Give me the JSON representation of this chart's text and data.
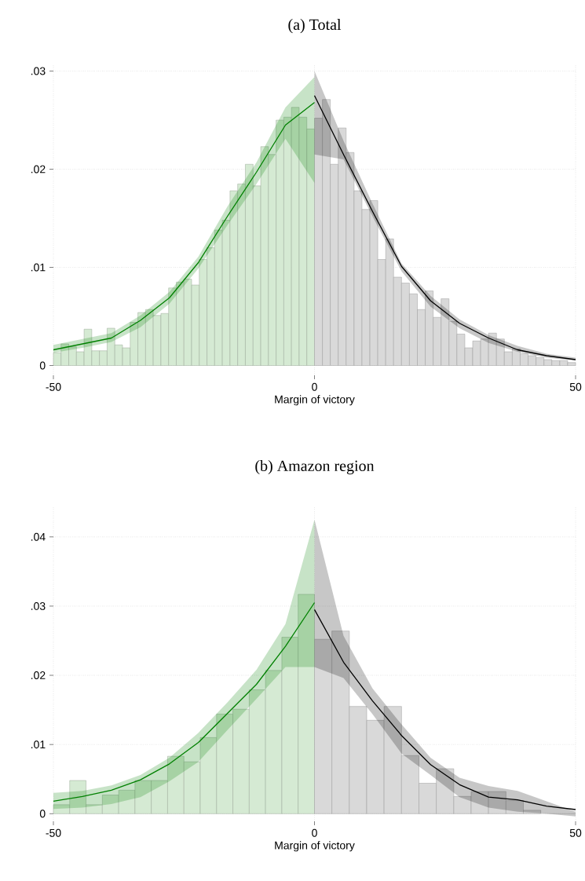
{
  "chart_data": [
    {
      "type": "histogram",
      "title": "(a) Total",
      "xlabel": "Margin of victory",
      "xlim": [
        -50,
        50
      ],
      "ylim": [
        -0.001,
        0.0306
      ],
      "xticks": [
        -50,
        0,
        50
      ],
      "yticks": [
        0,
        {
          "value": 0.01,
          "label": ".01"
        },
        {
          "value": 0.02,
          "label": ".02"
        },
        {
          "value": 0.03,
          "label": ".03"
        }
      ],
      "grid": true,
      "series": [
        {
          "type": "histogram",
          "color": "#d5ead3",
          "bins": [
            -50,
            -48.53,
            -47.06,
            -45.59,
            -44.12,
            -42.65,
            -41.18,
            -39.71,
            -38.24,
            -36.76,
            -35.29,
            -33.82,
            -32.35,
            -30.88,
            -29.41,
            -27.94,
            -26.47,
            -25,
            -23.53,
            -22.06,
            -20.59,
            -19.12,
            -17.65,
            -16.18,
            -14.71,
            -13.24,
            -11.76,
            -10.29,
            -8.82,
            -7.35,
            -5.88,
            -4.41,
            -2.94,
            -1.47,
            0
          ],
          "values": [
            0.0013,
            0.0022,
            0.0019,
            0.0014,
            0.0037,
            0.0015,
            0.0015,
            0.0038,
            0.0021,
            0.0018,
            0.0044,
            0.0054,
            0.0057,
            0.0051,
            0.0053,
            0.0079,
            0.0085,
            0.0088,
            0.0082,
            0.0108,
            0.012,
            0.0138,
            0.0148,
            0.0178,
            0.0185,
            0.0205,
            0.0183,
            0.0223,
            0.0215,
            0.025,
            0.0253,
            0.0263,
            0.0253,
            0.0241
          ]
        },
        {
          "type": "histogram",
          "color": "#d9d9d9",
          "bins": [
            0,
            1.52,
            3.03,
            4.55,
            6.06,
            7.58,
            9.09,
            10.61,
            12.12,
            13.64,
            15.15,
            16.67,
            18.18,
            19.7,
            21.21,
            22.73,
            24.24,
            25.76,
            27.27,
            28.79,
            30.3,
            31.82,
            33.33,
            34.85,
            36.36,
            37.88,
            39.39,
            40.91,
            42.42,
            43.94,
            45.45,
            46.97,
            48.48,
            50
          ],
          "values": [
            0.0252,
            0.0271,
            0.0205,
            0.0242,
            0.0217,
            0.0178,
            0.0159,
            0.0168,
            0.0108,
            0.0129,
            0.009,
            0.0084,
            0.0073,
            0.0057,
            0.0076,
            0.0049,
            0.0068,
            0.0045,
            0.0032,
            0.0018,
            0.0025,
            0.0027,
            0.0033,
            0.0027,
            0.0014,
            0.0017,
            0.0012,
            0.001,
            0.0008,
            0.0006,
            0.0005,
            0.0005,
            0.0003
          ]
        },
        {
          "type": "line",
          "color": "#008000",
          "x": [
            -50,
            -44.44,
            -38.89,
            -33.33,
            -27.78,
            -22.22,
            -16.67,
            -11.11,
            -5.56,
            0
          ],
          "values": [
            0.0016,
            0.0022,
            0.0028,
            0.0046,
            0.0069,
            0.0105,
            0.0152,
            0.0197,
            0.0245,
            0.0268
          ],
          "lower": [
            0.0013,
            0.0018,
            0.0024,
            0.0039,
            0.0063,
            0.0099,
            0.0143,
            0.0185,
            0.0231,
            0.0186
          ],
          "upper": [
            0.0021,
            0.0027,
            0.0033,
            0.0051,
            0.0075,
            0.0111,
            0.0162,
            0.0207,
            0.0263,
            0.0294
          ]
        },
        {
          "type": "line",
          "color": "#000000",
          "x": [
            0,
            5.56,
            11.11,
            16.67,
            22.22,
            27.78,
            33.33,
            38.89,
            44.44,
            50
          ],
          "values": [
            0.0275,
            0.0215,
            0.0157,
            0.0101,
            0.0066,
            0.0043,
            0.0028,
            0.0016,
            0.001,
            0.0006
          ],
          "lower": [
            0.0215,
            0.021,
            0.0152,
            0.0096,
            0.006,
            0.0038,
            0.0023,
            0.0014,
            0.0008,
            0.0005
          ],
          "upper": [
            0.03,
            0.0229,
            0.0165,
            0.0104,
            0.0071,
            0.0047,
            0.0031,
            0.002,
            0.0012,
            0.0008
          ]
        }
      ]
    },
    {
      "type": "histogram",
      "title": "(b) Amazon region",
      "xlabel": "Margin of victory",
      "xlim": [
        -50,
        50
      ],
      "ylim": [
        -0.0011,
        0.0444
      ],
      "xticks": [
        -50,
        0,
        50
      ],
      "yticks": [
        0,
        {
          "value": 0.01,
          "label": ".01"
        },
        {
          "value": 0.02,
          "label": ".02"
        },
        {
          "value": 0.03,
          "label": ".03"
        },
        {
          "value": 0.04,
          "label": ".04"
        }
      ],
      "grid": true,
      "series": [
        {
          "type": "histogram",
          "color": "#d5ead3",
          "bins": [
            -50,
            -46.88,
            -43.75,
            -40.63,
            -37.5,
            -34.38,
            -31.25,
            -28.13,
            -25,
            -21.88,
            -18.75,
            -15.63,
            -12.5,
            -9.38,
            -6.25,
            -3.13,
            0
          ],
          "values": [
            0.0013,
            0.0048,
            0.0013,
            0.0027,
            0.0034,
            0.0048,
            0.0048,
            0.0083,
            0.0075,
            0.011,
            0.0144,
            0.0151,
            0.0179,
            0.0207,
            0.0255,
            0.0317
          ]
        },
        {
          "type": "histogram",
          "color": "#d9d9d9",
          "bins": [
            0,
            3.33,
            6.67,
            10,
            13.33,
            16.67,
            20,
            23.33,
            26.67,
            30,
            33.33,
            36.67,
            40,
            43.33,
            46.67,
            50
          ],
          "values": [
            0.0252,
            0.0264,
            0.0155,
            0.0135,
            0.0155,
            0.0084,
            0.0044,
            0.0065,
            0.0025,
            0.0032,
            0.0032,
            0.0019,
            0.0005,
            0,
            0
          ]
        },
        {
          "type": "line",
          "color": "#008000",
          "x": [
            -50,
            -44.44,
            -38.89,
            -33.33,
            -27.78,
            -22.22,
            -16.67,
            -11.11,
            -5.56,
            0
          ],
          "values": [
            0.0018,
            0.0025,
            0.0034,
            0.0049,
            0.0072,
            0.0103,
            0.0145,
            0.0187,
            0.0242,
            0.0305
          ],
          "lower": [
            0.0007,
            0.0009,
            0.0014,
            0.0024,
            0.0047,
            0.0075,
            0.0121,
            0.0166,
            0.0212,
            0.0212
          ],
          "upper": [
            0.003,
            0.0033,
            0.0041,
            0.0056,
            0.0081,
            0.0117,
            0.0161,
            0.0208,
            0.0274,
            0.0425
          ]
        },
        {
          "type": "line",
          "color": "#000000",
          "x": [
            0,
            5.56,
            11.11,
            16.67,
            22.22,
            27.78,
            33.33,
            38.89,
            44.44,
            50
          ],
          "values": [
            0.0295,
            0.0219,
            0.0163,
            0.0113,
            0.0071,
            0.0042,
            0.0024,
            0.002,
            0.0011,
            0.0006
          ],
          "lower": [
            0.0212,
            0.0196,
            0.0144,
            0.0087,
            0.0056,
            0.0024,
            0.0009,
            0.0003,
            0,
            -0.0004
          ],
          "upper": [
            0.0425,
            0.0257,
            0.0181,
            0.0129,
            0.0081,
            0.0052,
            0.004,
            0.0033,
            0.0018,
            0.0003
          ]
        }
      ]
    }
  ]
}
